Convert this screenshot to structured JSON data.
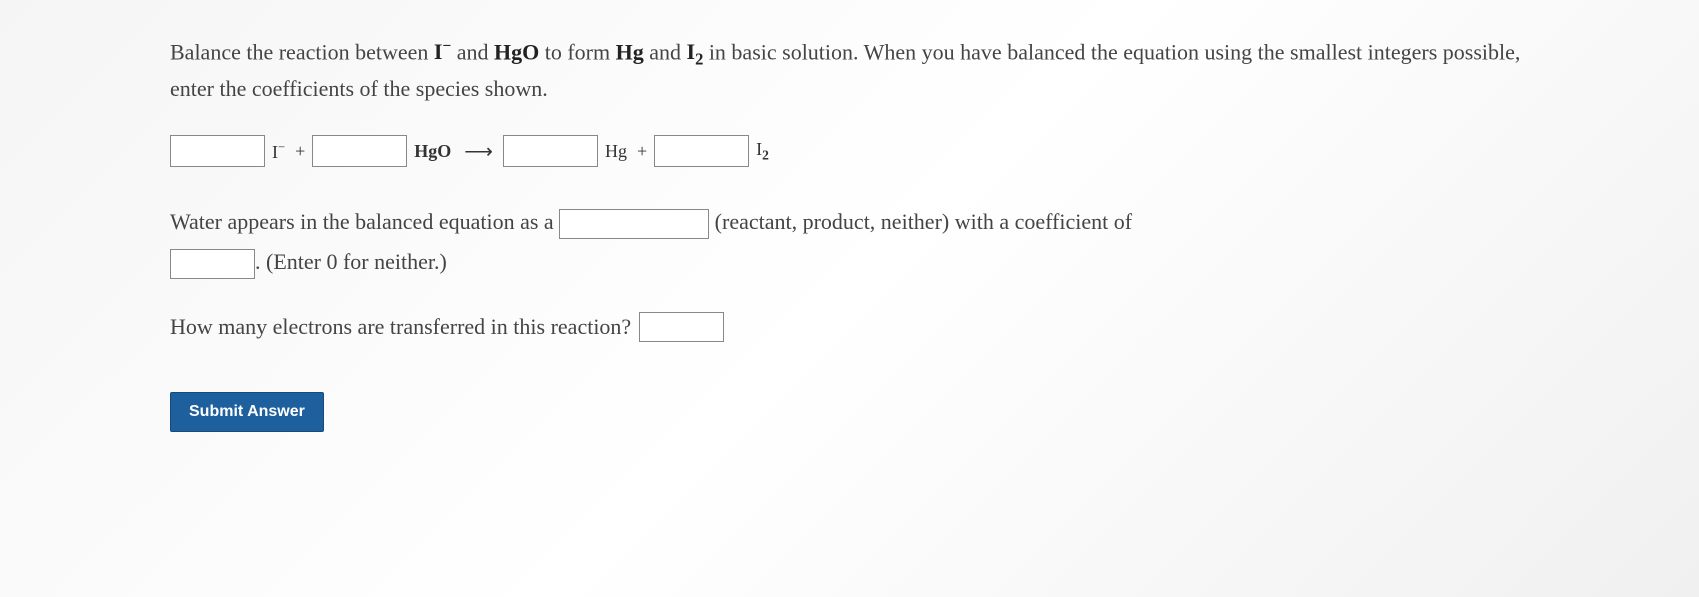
{
  "question": {
    "text_parts": [
      "Balance the reaction between ",
      " and ",
      " to form ",
      " and ",
      " in basic solution. When you have balanced the equation using the smallest integers possible, enter the coefficients of the species shown."
    ],
    "species": {
      "iodide": "I",
      "iodide_charge": "−",
      "hgo": "HgO",
      "hg": "Hg",
      "i2_base": "I",
      "i2_sub": "2"
    }
  },
  "equation": {
    "reactant1": "I",
    "reactant1_sup": "−",
    "plus1": " + ",
    "reactant2": "HgO",
    "arrow": "⟶",
    "product1": "Hg",
    "plus2": " + ",
    "product2_base": "I",
    "product2_sub": "2"
  },
  "water": {
    "text1": "Water appears in the balanced equation as a ",
    "text2": " (reactant, product, neither) with a coefficient of ",
    "text3": ". (Enter 0 for neither.)"
  },
  "electrons": {
    "text": "How many electrons are transferred in this reaction?"
  },
  "button": {
    "submit": "Submit Answer"
  },
  "styling": {
    "background_color": "#f5f5f5",
    "text_color": "#444",
    "input_border": "#888",
    "button_bg": "#1e5f9e",
    "button_text": "#ffffff",
    "font_family": "Georgia, serif",
    "question_fontsize": 22,
    "equation_fontsize": 18
  }
}
